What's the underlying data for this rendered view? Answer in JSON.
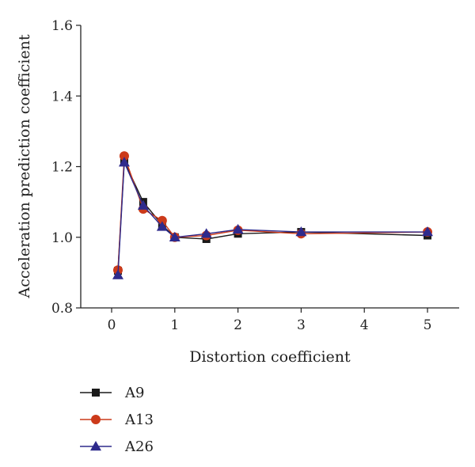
{
  "chart_data": {
    "type": "line",
    "xlabel": "Distortion coefficient",
    "ylabel": "Acceleration prediction coefficient",
    "xlim": [
      -0.5,
      5.5
    ],
    "ylim": [
      0.8,
      1.6
    ],
    "x_ticks": [
      0,
      1,
      2,
      3,
      4,
      5
    ],
    "x_tick_labels": [
      "0",
      "1",
      "2",
      "3",
      "4",
      "5"
    ],
    "y_ticks": [
      0.8,
      1.0,
      1.2,
      1.4,
      1.6
    ],
    "y_tick_labels": [
      "0.8",
      "1.0",
      "1.2",
      "1.4",
      "1.6"
    ],
    "grid": false,
    "legend_position": "bottom-left",
    "series": [
      {
        "name": "A9",
        "color": "#1a1a1a",
        "marker": "square",
        "x": [
          0.1,
          0.2,
          0.5,
          0.8,
          1.0,
          1.5,
          2.0,
          3.0,
          5.0
        ],
        "y": [
          0.905,
          1.215,
          1.1,
          1.035,
          1.0,
          0.995,
          1.01,
          1.015,
          1.005
        ]
      },
      {
        "name": "A13",
        "color": "#cc3a1a",
        "marker": "circle",
        "x": [
          0.1,
          0.2,
          0.5,
          0.8,
          1.0,
          1.5,
          2.0,
          3.0,
          5.0
        ],
        "y": [
          0.907,
          1.23,
          1.08,
          1.047,
          1.0,
          1.005,
          1.02,
          1.01,
          1.015
        ]
      },
      {
        "name": "A26",
        "color": "#2e2a8c",
        "marker": "triangle",
        "x": [
          0.1,
          0.2,
          0.5,
          0.8,
          1.0,
          1.5,
          2.0,
          3.0,
          5.0
        ],
        "y": [
          0.893,
          1.212,
          1.09,
          1.03,
          1.0,
          1.01,
          1.022,
          1.015,
          1.015
        ]
      }
    ]
  }
}
